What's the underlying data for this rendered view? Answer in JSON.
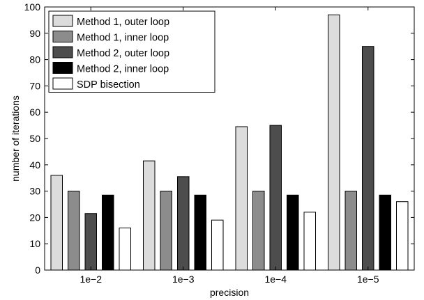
{
  "chart_data": {
    "type": "bar",
    "title": "",
    "xlabel": "precision",
    "ylabel": "number of iterations",
    "categories": [
      "1e−2",
      "1e−3",
      "1e−4",
      "1e−5"
    ],
    "ylim": [
      0,
      100
    ],
    "yticks": [
      0,
      10,
      20,
      30,
      40,
      50,
      60,
      70,
      80,
      90,
      100
    ],
    "grid": false,
    "legend_position": "top-left",
    "series": [
      {
        "name": "Method 1, outer loop",
        "color": "#dcdcdc",
        "values": [
          36,
          41.5,
          54.5,
          97
        ]
      },
      {
        "name": "Method 1, inner loop",
        "color": "#8c8c8c",
        "values": [
          30,
          30,
          30,
          30
        ]
      },
      {
        "name": "Method 2, outer loop",
        "color": "#4d4d4d",
        "values": [
          21.5,
          35.5,
          55,
          85
        ]
      },
      {
        "name": "Method 2, inner loop",
        "color": "#000000",
        "values": [
          28.5,
          28.5,
          28.5,
          28.5
        ]
      },
      {
        "name": "SDP bisection",
        "color": "#ffffff",
        "values": [
          16,
          19,
          22,
          26
        ]
      }
    ]
  }
}
